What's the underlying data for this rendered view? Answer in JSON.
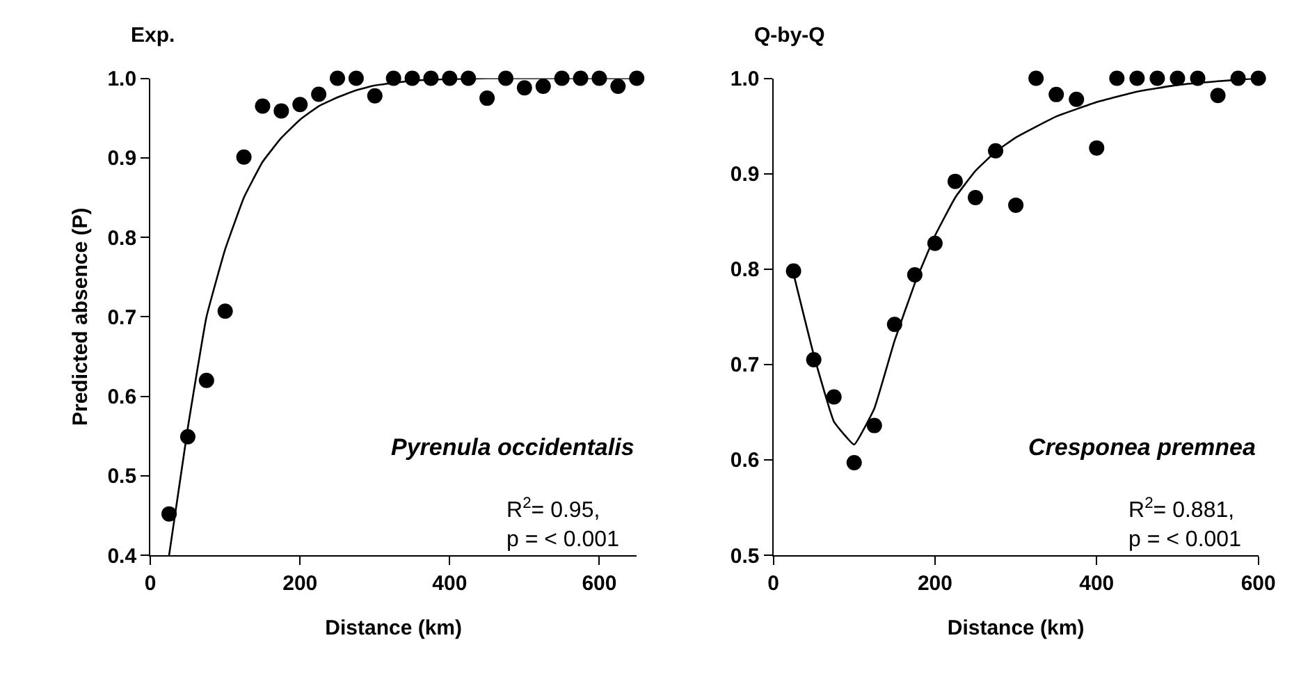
{
  "chart_data": [
    {
      "type": "scatter",
      "title": "Exp.",
      "xlabel": "Distance (km)",
      "ylabel": "Predicted absence (P)",
      "xlim": [
        0,
        650
      ],
      "xticks": [
        0,
        200,
        400,
        600
      ],
      "ylim": [
        0.4,
        1.0
      ],
      "yticks": [
        {
          "value": 0.4,
          "label": "0.4"
        },
        {
          "value": 0.5,
          "label": "0.5"
        },
        {
          "value": 0.6,
          "label": "0.6"
        },
        {
          "value": 0.7,
          "label": "0.7"
        },
        {
          "value": 0.8,
          "label": "0.8"
        },
        {
          "value": 0.9,
          "label": "0.9"
        },
        {
          "value": 1.0,
          "label": "1.0"
        }
      ],
      "marker": "circle",
      "annotations": [
        "Pyrenula occidentalis",
        "R$^{2}$= 0.95,\np = < 0.001"
      ],
      "series": [
        {
          "color": "#000000",
          "x": [
            25,
            50,
            75,
            100,
            125,
            150,
            175,
            200,
            225,
            250,
            275,
            300,
            325,
            350,
            375,
            400,
            425,
            450,
            475,
            500,
            525,
            550,
            575,
            600,
            625,
            650
          ],
          "values": [
            0.452,
            0.549,
            0.62,
            0.707,
            0.901,
            0.965,
            0.959,
            0.967,
            0.98,
            1.0,
            1.0,
            0.978,
            1.0,
            1.0,
            1.0,
            1.0,
            1.0,
            0.975,
            1.0,
            0.988,
            0.99,
            1.0,
            1.0,
            1.0,
            0.99,
            1.0
          ]
        },
        {
          "type": "line",
          "color": "#000000",
          "marker": "none",
          "x": [
            25,
            50,
            75,
            100,
            125,
            150,
            175,
            200,
            225,
            250,
            275,
            300,
            350,
            400,
            450,
            500,
            550,
            600,
            650
          ],
          "values": [
            0.4,
            0.56,
            0.7,
            0.785,
            0.85,
            0.895,
            0.925,
            0.948,
            0.965,
            0.976,
            0.985,
            0.991,
            0.997,
            0.999,
            1.0,
            1.0,
            1.0,
            1.0,
            1.0
          ]
        }
      ]
    },
    {
      "type": "scatter",
      "title": "Q-by-Q",
      "xlabel": "Distance (km)",
      "xlim": [
        0,
        600
      ],
      "xticks": [
        0,
        200,
        400,
        600
      ],
      "ylim": [
        0.5,
        1.0
      ],
      "yticks": [
        {
          "value": 0.5,
          "label": "0.5"
        },
        {
          "value": 0.6,
          "label": "0.6"
        },
        {
          "value": 0.7,
          "label": "0.7"
        },
        {
          "value": 0.8,
          "label": "0.8"
        },
        {
          "value": 0.9,
          "label": "0.9"
        },
        {
          "value": 1.0,
          "label": "1.0"
        }
      ],
      "marker": "circle",
      "annotations": [
        "Cresponea premnea",
        "R$^{2}$= 0.881,\np = < 0.001"
      ],
      "series": [
        {
          "color": "#000000",
          "x": [
            25,
            50,
            75,
            100,
            125,
            150,
            175,
            200,
            225,
            250,
            275,
            300,
            325,
            350,
            375,
            400,
            425,
            450,
            475,
            500,
            525,
            550,
            575,
            600
          ],
          "values": [
            0.798,
            0.705,
            0.666,
            0.597,
            0.636,
            0.742,
            0.794,
            0.827,
            0.892,
            0.875,
            0.924,
            0.867,
            1.0,
            0.983,
            0.978,
            0.927,
            1.0,
            1.0,
            1.0,
            1.0,
            1.0,
            0.982,
            1.0,
            1.0
          ]
        },
        {
          "type": "line",
          "color": "#000000",
          "marker": "none",
          "x": [
            25,
            50,
            75,
            100,
            125,
            150,
            175,
            200,
            225,
            250,
            275,
            300,
            350,
            400,
            450,
            500,
            550,
            600
          ],
          "values": [
            0.795,
            0.71,
            0.64,
            0.616,
            0.654,
            0.725,
            0.785,
            0.835,
            0.875,
            0.903,
            0.923,
            0.938,
            0.96,
            0.975,
            0.986,
            0.993,
            0.997,
            1.0
          ]
        }
      ]
    }
  ]
}
